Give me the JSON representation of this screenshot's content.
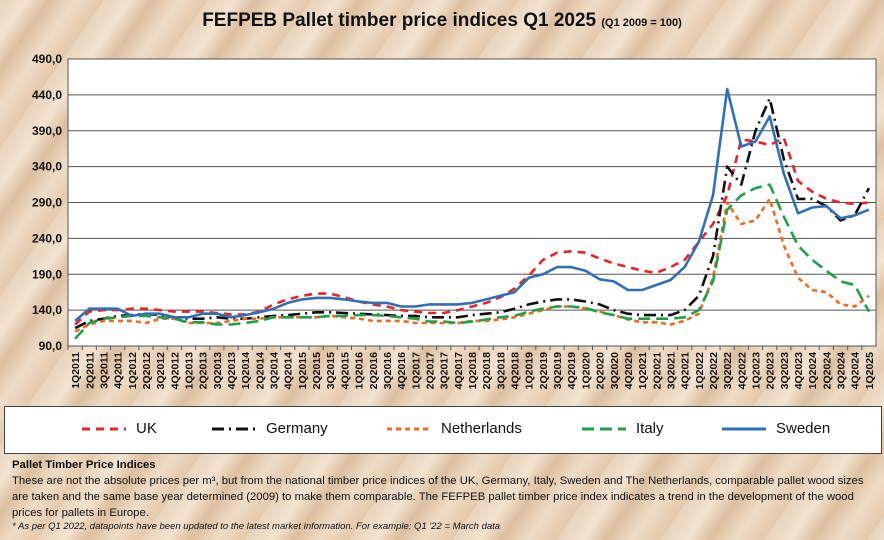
{
  "chart_data": {
    "type": "line",
    "title": "FEFPEB Pallet timber price indices Q1 2025",
    "subtitle": "(Q1 2009 = 100)",
    "ylim": [
      90,
      490
    ],
    "yticks": [
      "90,0",
      "140,0",
      "190,0",
      "240,0",
      "290,0",
      "340,0",
      "390,0",
      "440,0",
      "490,0"
    ],
    "ytick_values": [
      90,
      140,
      190,
      240,
      290,
      340,
      390,
      440,
      490
    ],
    "grid": true,
    "legend_position": "bottom",
    "categories": [
      "1Q2011",
      "2Q2011",
      "3Q2011",
      "4Q2011",
      "1Q2012",
      "2Q2012",
      "3Q2012",
      "4Q2012",
      "1Q2013",
      "2Q2013",
      "3Q2013",
      "4Q2013",
      "1Q2014",
      "2Q2014",
      "3Q2014",
      "4Q2014",
      "1Q2015",
      "2Q2015",
      "3Q2015",
      "4Q2015",
      "1Q2016",
      "2Q2016",
      "3Q2016",
      "4Q2016",
      "1Q2017",
      "2Q2017",
      "3Q2017",
      "4Q2017",
      "1Q2018",
      "2Q2018",
      "3Q2018",
      "4Q2018",
      "1Q2019",
      "2Q2019",
      "3Q2019",
      "4Q2019",
      "1Q2020",
      "2Q2020",
      "3Q2020",
      "4Q2020",
      "1Q2021",
      "2Q2021",
      "3Q2021",
      "4Q2021",
      "1Q2022",
      "2Q2022",
      "3Q2022",
      "4Q2022",
      "1Q2023",
      "2Q2023",
      "3Q2023",
      "4Q2023",
      "1Q2024",
      "2Q2024",
      "3Q2024",
      "4Q2024",
      "1Q2025"
    ],
    "series": [
      {
        "name": "UK",
        "color": "#e8242a",
        "dash": "8,6",
        "values": [
          120,
          138,
          140,
          140,
          142,
          142,
          140,
          138,
          138,
          138,
          136,
          134,
          134,
          138,
          148,
          155,
          160,
          163,
          163,
          158,
          152,
          148,
          145,
          140,
          138,
          136,
          136,
          140,
          145,
          150,
          158,
          170,
          188,
          210,
          220,
          222,
          220,
          212,
          205,
          200,
          195,
          192,
          200,
          210,
          235,
          260,
          300,
          378,
          375,
          370,
          380,
          320,
          305,
          295,
          290,
          288,
          290
        ]
      },
      {
        "name": "Germany",
        "color": "#111111",
        "dash": "12,5,2,5",
        "values": [
          115,
          125,
          128,
          132,
          133,
          135,
          133,
          130,
          128,
          128,
          130,
          128,
          128,
          130,
          132,
          133,
          135,
          137,
          137,
          136,
          135,
          134,
          133,
          132,
          132,
          130,
          130,
          130,
          133,
          135,
          137,
          142,
          148,
          152,
          155,
          155,
          152,
          148,
          140,
          135,
          133,
          133,
          133,
          140,
          160,
          215,
          340,
          315,
          390,
          435,
          350,
          295,
          295,
          285,
          265,
          272,
          310
        ]
      },
      {
        "name": "Netherlands",
        "color": "#f06a20",
        "dash": "5,4",
        "values": [
          110,
          120,
          125,
          125,
          125,
          122,
          128,
          128,
          122,
          122,
          122,
          125,
          128,
          128,
          130,
          130,
          130,
          130,
          132,
          130,
          128,
          125,
          125,
          125,
          122,
          122,
          122,
          122,
          125,
          125,
          127,
          130,
          135,
          140,
          145,
          145,
          142,
          138,
          133,
          127,
          123,
          123,
          120,
          125,
          135,
          185,
          290,
          260,
          265,
          295,
          230,
          185,
          168,
          165,
          148,
          145,
          160
        ]
      },
      {
        "name": "Italy",
        "color": "#21a04a",
        "dash": "12,6",
        "values": [
          100,
          122,
          128,
          130,
          132,
          132,
          130,
          128,
          123,
          123,
          120,
          120,
          122,
          125,
          130,
          130,
          130,
          130,
          132,
          132,
          133,
          133,
          132,
          130,
          128,
          124,
          124,
          122,
          124,
          127,
          130,
          132,
          138,
          142,
          145,
          145,
          143,
          137,
          133,
          128,
          128,
          128,
          128,
          130,
          140,
          180,
          280,
          300,
          310,
          315,
          270,
          230,
          210,
          195,
          180,
          175,
          138
        ]
      },
      {
        "name": "Sweden",
        "color": "#2f70b8",
        "dash": "",
        "values": [
          125,
          142,
          142,
          142,
          132,
          135,
          135,
          130,
          130,
          135,
          135,
          130,
          133,
          137,
          142,
          150,
          155,
          157,
          157,
          155,
          152,
          150,
          150,
          145,
          145,
          148,
          148,
          148,
          150,
          155,
          160,
          165,
          185,
          190,
          200,
          200,
          195,
          183,
          180,
          168,
          168,
          175,
          182,
          200,
          235,
          300,
          448,
          368,
          375,
          410,
          330,
          275,
          283,
          285,
          268,
          272,
          280
        ]
      }
    ]
  },
  "notes": {
    "heading": "Pallet Timber Price Indices",
    "line1": "These are not the absolute prices per m³, but from the national timber price indices of the UK, Germany, Italy, Sweden and The Netherlands, comparable pallet wood sizes are taken and the same base year determined (2009) to make them comparable. The FEFPEB pallet timber price index indicates a trend in the development of the wood prices for pallets in Europe.",
    "footnote": "* As per Q1 2022, datapoints have been updated to the latest market information. For example: Q1 '22 = March data"
  }
}
